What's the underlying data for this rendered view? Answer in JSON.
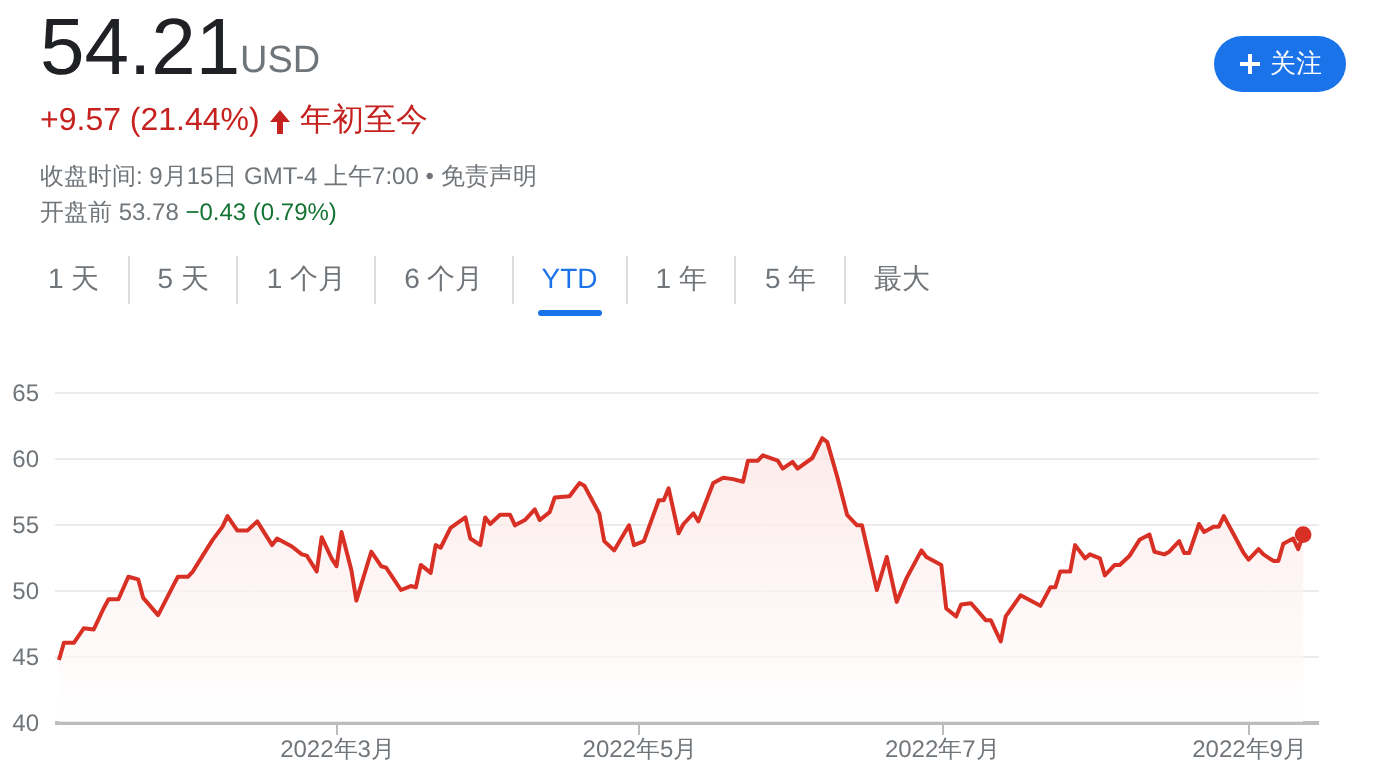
{
  "chart_data": {
    "type": "area",
    "title": "54.21",
    "subtitle": "USD",
    "annotations": [
      "+9.57 (21.44%)",
      "年初至今",
      "收盘时间: 9月15日 GMT-4 上午7:00 • 免责声明",
      "开盘前 53.78",
      "−0.43 (0.79%)",
      "1 天",
      "5 天",
      "1 个月",
      "6 个月",
      "YTD",
      "1 年",
      "5 年",
      "最大",
      "关注"
    ],
    "xlim": [
      "2022-01-03",
      "2022-09-15"
    ],
    "xticks": [
      {
        "value": "2022-03-01",
        "label": "2022年3月"
      },
      {
        "value": "2022-05-01",
        "label": "2022年5月"
      },
      {
        "value": "2022-07-01",
        "label": "2022年7月"
      },
      {
        "value": "2022-09-01",
        "label": "2022年9月"
      }
    ],
    "ylim": [
      40,
      65
    ],
    "yticks": [
      40,
      45,
      50,
      55,
      60,
      65
    ],
    "grid": "y",
    "series": [
      {
        "color": "#d93025",
        "x": [
          "2022-01-04",
          "2022-01-05",
          "2022-01-07",
          "2022-01-09",
          "2022-01-11",
          "2022-01-13",
          "2022-01-14",
          "2022-01-16",
          "2022-01-18",
          "2022-01-20",
          "2022-01-21",
          "2022-01-24",
          "2022-01-27",
          "2022-01-28",
          "2022-01-30",
          "2022-01-31",
          "2022-02-02",
          "2022-02-04",
          "2022-02-06",
          "2022-02-07",
          "2022-02-09",
          "2022-02-11",
          "2022-02-13",
          "2022-02-16",
          "2022-02-17",
          "2022-02-20",
          "2022-02-22",
          "2022-02-23",
          "2022-02-25",
          "2022-02-26",
          "2022-02-28",
          "2022-03-01",
          "2022-03-02",
          "2022-03-04",
          "2022-03-05",
          "2022-03-08",
          "2022-03-10",
          "2022-03-11",
          "2022-03-14",
          "2022-03-16",
          "2022-03-17",
          "2022-03-18",
          "2022-03-20",
          "2022-03-21",
          "2022-03-22",
          "2022-03-24",
          "2022-03-27",
          "2022-03-28",
          "2022-03-30",
          "2022-03-31",
          "2022-04-01",
          "2022-04-03",
          "2022-04-05",
          "2022-04-06",
          "2022-04-08",
          "2022-04-10",
          "2022-04-11",
          "2022-04-13",
          "2022-04-14",
          "2022-04-17",
          "2022-04-19",
          "2022-04-20",
          "2022-04-23",
          "2022-04-24",
          "2022-04-26",
          "2022-04-29",
          "2022-04-30",
          "2022-05-02",
          "2022-05-05",
          "2022-05-06",
          "2022-05-07",
          "2022-05-09",
          "2022-05-10",
          "2022-05-12",
          "2022-05-13",
          "2022-05-16",
          "2022-05-18",
          "2022-05-20",
          "2022-05-22",
          "2022-05-23",
          "2022-05-25",
          "2022-05-26",
          "2022-05-29",
          "2022-05-30",
          "2022-06-01",
          "2022-06-02",
          "2022-06-05",
          "2022-06-07",
          "2022-06-08",
          "2022-06-10",
          "2022-06-12",
          "2022-06-14",
          "2022-06-15",
          "2022-06-18",
          "2022-06-20",
          "2022-06-22",
          "2022-06-24",
          "2022-06-27",
          "2022-06-28",
          "2022-07-01",
          "2022-07-02",
          "2022-07-04",
          "2022-07-05",
          "2022-07-07",
          "2022-07-10",
          "2022-07-11",
          "2022-07-13",
          "2022-07-14",
          "2022-07-17",
          "2022-07-19",
          "2022-07-21",
          "2022-07-23",
          "2022-07-24",
          "2022-07-25",
          "2022-07-27",
          "2022-07-28",
          "2022-07-30",
          "2022-07-31",
          "2022-08-02",
          "2022-08-03",
          "2022-08-05",
          "2022-08-06",
          "2022-08-08",
          "2022-08-10",
          "2022-08-12",
          "2022-08-13",
          "2022-08-15",
          "2022-08-16",
          "2022-08-18",
          "2022-08-19",
          "2022-08-20",
          "2022-08-22",
          "2022-08-23",
          "2022-08-25",
          "2022-08-26",
          "2022-08-27",
          "2022-08-29",
          "2022-08-31",
          "2022-09-01",
          "2022-09-03",
          "2022-09-04",
          "2022-09-06",
          "2022-09-07",
          "2022-09-08",
          "2022-09-10",
          "2022-09-11",
          "2022-09-12"
        ],
        "values": [
          44.7,
          46.0,
          46.0,
          47.1,
          47.0,
          48.6,
          49.3,
          49.3,
          51.0,
          50.8,
          49.4,
          48.1,
          50.3,
          51.0,
          51.0,
          51.4,
          52.6,
          53.8,
          54.8,
          55.6,
          54.5,
          54.5,
          55.2,
          53.4,
          53.9,
          53.3,
          52.7,
          52.6,
          51.4,
          54.0,
          52.4,
          51.8,
          54.4,
          51.5,
          49.2,
          52.9,
          51.8,
          51.7,
          50.0,
          50.3,
          50.2,
          51.9,
          51.3,
          53.4,
          53.2,
          54.7,
          55.5,
          53.9,
          53.4,
          55.5,
          55.0,
          55.7,
          55.7,
          54.9,
          55.3,
          56.1,
          55.3,
          55.9,
          57.0,
          57.1,
          58.1,
          57.9,
          55.8,
          53.7,
          53.0,
          54.9,
          53.4,
          53.7,
          56.8,
          56.8,
          57.7,
          54.3,
          55.0,
          55.8,
          55.2,
          58.1,
          58.5,
          58.4,
          58.2,
          59.8,
          59.8,
          60.2,
          59.8,
          59.2,
          59.7,
          59.2,
          60.0,
          61.5,
          61.2,
          58.6,
          55.7,
          54.9,
          54.9,
          50.0,
          52.5,
          49.1,
          50.9,
          53.0,
          52.5,
          51.9,
          48.6,
          48.0,
          48.9,
          49.0,
          47.7,
          47.7,
          46.1,
          48.0,
          49.6,
          49.2,
          48.8,
          50.2,
          50.2,
          51.4,
          51.4,
          53.4,
          52.4,
          52.7,
          52.4,
          51.1,
          51.9,
          51.9,
          52.6,
          53.8,
          54.2,
          52.9,
          52.7,
          52.9,
          53.7,
          52.8,
          52.8,
          55.0,
          54.4,
          54.8,
          54.8,
          55.6,
          54.2,
          52.8,
          52.3,
          53.1,
          52.7,
          52.2,
          52.2,
          53.5,
          53.9,
          53.1,
          54.2
        ]
      },
      {
        "type": "scatter",
        "color": "#d93025",
        "marker": "circle",
        "x": [
          "2022-09-12"
        ],
        "values": [
          54.2
        ]
      }
    ]
  }
}
